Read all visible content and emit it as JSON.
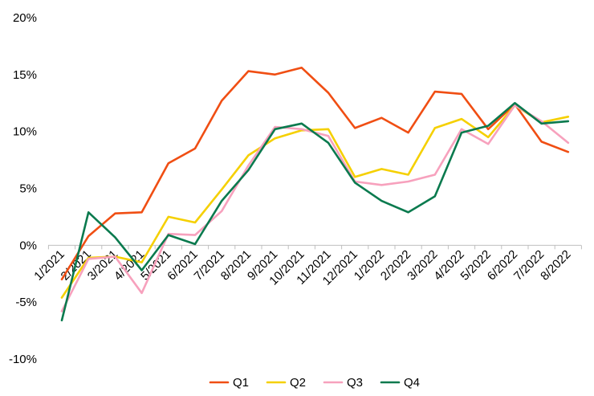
{
  "chart_data": {
    "type": "line",
    "title": "",
    "xlabel": "",
    "ylabel": "",
    "categories": [
      "1/2021",
      "2/2021",
      "3/2021",
      "4/2021",
      "5/2021",
      "6/2021",
      "7/2021",
      "8/2021",
      "9/2021",
      "10/2021",
      "11/2021",
      "12/2021",
      "1/2022",
      "2/2022",
      "3/2022",
      "4/2022",
      "5/2022",
      "6/2022",
      "7/2022",
      "8/2022"
    ],
    "ylim": [
      -10,
      20
    ],
    "yticks": [
      20,
      15,
      10,
      5,
      0,
      -5,
      -10
    ],
    "ytick_labels": [
      "20%",
      "15%",
      "10%",
      "5%",
      "0%",
      "-5%",
      "-10%"
    ],
    "grid": false,
    "legend_position": "bottom",
    "series": [
      {
        "name": "Q1",
        "color": "#f04e13",
        "values": [
          -3.0,
          0.8,
          2.8,
          2.9,
          7.2,
          8.5,
          12.7,
          15.3,
          15.0,
          15.6,
          13.4,
          10.3,
          11.2,
          9.9,
          13.5,
          13.3,
          10.2,
          12.4,
          9.1,
          8.2
        ]
      },
      {
        "name": "Q2",
        "color": "#f5d000",
        "values": [
          -4.6,
          -1.1,
          -1.0,
          -1.5,
          2.5,
          2.0,
          4.9,
          7.9,
          9.4,
          10.1,
          10.2,
          6.0,
          6.7,
          6.2,
          10.3,
          11.1,
          9.5,
          12.3,
          10.8,
          11.3
        ]
      },
      {
        "name": "Q3",
        "color": "#f7a1bd",
        "values": [
          -5.8,
          -1.2,
          -1.0,
          -4.2,
          1.0,
          0.9,
          3.0,
          7.0,
          10.4,
          10.2,
          9.6,
          5.6,
          5.3,
          5.6,
          6.2,
          10.2,
          8.9,
          12.3,
          10.9,
          9.0
        ]
      },
      {
        "name": "Q4",
        "color": "#0a7a4e",
        "values": [
          -6.6,
          2.9,
          0.7,
          -2.2,
          0.9,
          0.1,
          3.9,
          6.6,
          10.2,
          10.7,
          9.0,
          5.5,
          3.9,
          2.9,
          4.3,
          9.9,
          10.5,
          12.5,
          10.7,
          10.9
        ]
      }
    ]
  }
}
